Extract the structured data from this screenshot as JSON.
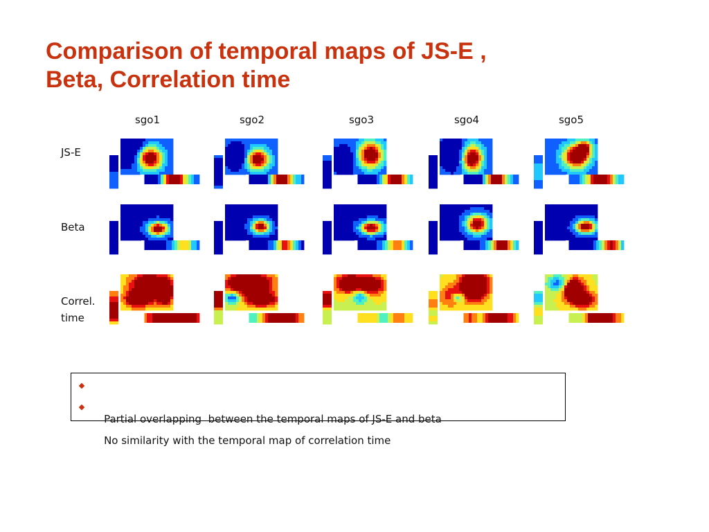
{
  "slide": {
    "title_line1": "Comparison of temporal maps of JS-E ,",
    "title_line2": "Beta, Correlation time",
    "title_color": "#c8320e",
    "bullet_color": "#c8320e"
  },
  "columns": [
    "sgo1",
    "sgo2",
    "sgo3",
    "sgo4",
    "sgo5"
  ],
  "rows": [
    {
      "label_lines": [
        "JS-E"
      ]
    },
    {
      "label_lines": [
        "Beta"
      ]
    },
    {
      "label_lines": [
        "Correl.",
        "time"
      ]
    }
  ],
  "colormap": [
    "#0000b0",
    "#1060ff",
    "#20c8ff",
    "#50f0c0",
    "#c8f050",
    "#ffe020",
    "#ff8010",
    "#e81010",
    "#a00000"
  ],
  "bullets": [
    "Partial overlapping  between the temporal maps of JS-E and beta",
    "No similarity with the temporal map of correlation time"
  ]
}
